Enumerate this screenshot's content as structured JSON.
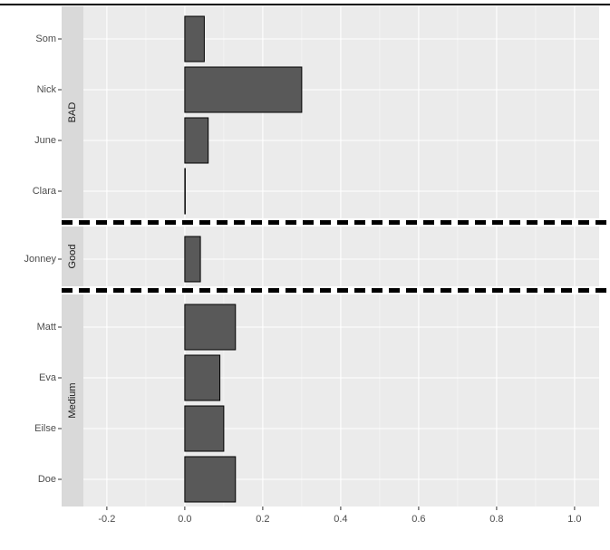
{
  "chart_data": {
    "type": "bar",
    "facets": [
      {
        "label": "BAD",
        "categories": [
          "Som",
          "Nick",
          "June",
          "Clara"
        ],
        "values": [
          0.05,
          0.3,
          0.06,
          0
        ]
      },
      {
        "label": "Good",
        "categories": [
          "Jonney"
        ],
        "values": [
          0.04
        ]
      },
      {
        "label": "Medium",
        "categories": [
          "Matt",
          "Eva",
          "Eilse",
          "Doe"
        ],
        "values": [
          0.13,
          0.09,
          0.1,
          0.13
        ]
      }
    ],
    "color": "#595959",
    "xlim": [
      -0.316,
      1.063
    ],
    "xticks": [
      -0.2,
      {
        "value": 0,
        "label": "0.0"
      },
      0.2,
      0.4,
      0.6,
      0.8,
      {
        "value": 1,
        "label": "1.0"
      }
    ],
    "grid": true
  }
}
